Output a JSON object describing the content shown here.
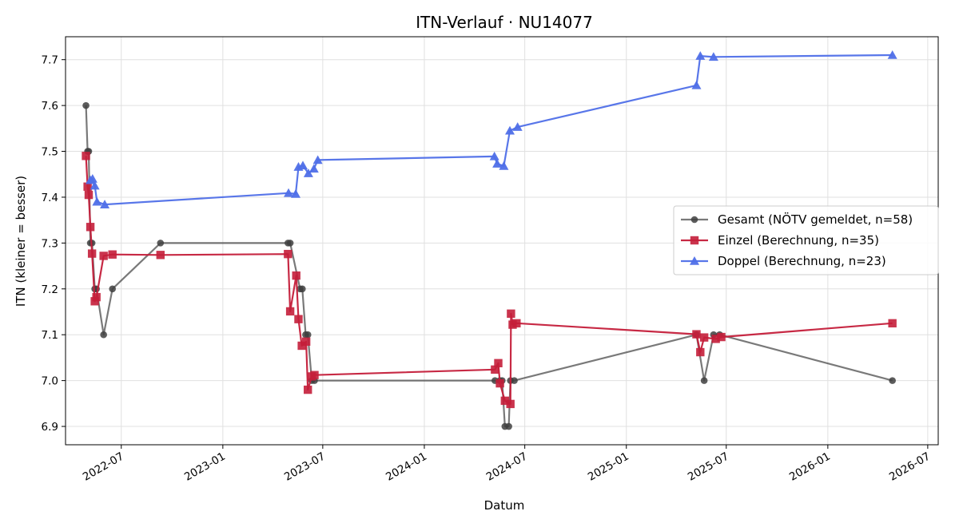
{
  "chart_data": {
    "type": "line",
    "title": "ITN-Verlauf · NU14077",
    "xlabel": "Datum",
    "ylabel": "ITN  (kleiner = besser)",
    "xlim": [
      "2022-03-22",
      "2026-07-20"
    ],
    "ylim": [
      6.86,
      7.75
    ],
    "x_ticks": [
      "2022-07",
      "2023-01",
      "2023-07",
      "2024-01",
      "2024-07",
      "2025-01",
      "2025-07",
      "2026-01",
      "2026-07"
    ],
    "y_ticks": [
      "6.9",
      "7.0",
      "7.1",
      "7.2",
      "7.3",
      "7.4",
      "7.5",
      "7.6",
      "7.7"
    ],
    "grid": true,
    "legend_position": "center-right",
    "series": [
      {
        "name": "Gesamt (NÖTV gemeldet, n=58)",
        "color": "#404040",
        "marker": "circle",
        "points": [
          [
            "2022-04-28",
            7.6
          ],
          [
            "2022-05-01",
            7.5
          ],
          [
            "2022-05-03",
            7.5
          ],
          [
            "2022-05-06",
            7.3
          ],
          [
            "2022-05-09",
            7.3
          ],
          [
            "2022-05-14",
            7.2
          ],
          [
            "2022-05-17",
            7.2
          ],
          [
            "2022-05-30",
            7.1
          ],
          [
            "2022-06-15",
            7.2
          ],
          [
            "2022-09-10",
            7.3
          ],
          [
            "2023-04-29",
            7.3
          ],
          [
            "2023-05-03",
            7.3
          ],
          [
            "2023-05-21",
            7.2
          ],
          [
            "2023-05-25",
            7.2
          ],
          [
            "2023-05-31",
            7.1
          ],
          [
            "2023-06-04",
            7.1
          ],
          [
            "2023-06-11",
            7.0
          ],
          [
            "2023-06-16",
            7.0
          ],
          [
            "2024-05-08",
            7.0
          ],
          [
            "2024-05-17",
            7.0
          ],
          [
            "2024-05-21",
            7.0
          ],
          [
            "2024-05-26",
            6.9
          ],
          [
            "2024-06-02",
            6.9
          ],
          [
            "2024-06-05",
            7.0
          ],
          [
            "2024-06-12",
            7.0
          ],
          [
            "2025-05-08",
            7.1
          ],
          [
            "2025-05-22",
            7.0
          ],
          [
            "2025-06-08",
            7.1
          ],
          [
            "2025-06-19",
            7.1
          ],
          [
            "2026-04-28",
            7.0
          ]
        ]
      },
      {
        "name": "Einzel (Berechnung, n=35)",
        "color": "#c41e3a",
        "marker": "square",
        "points": [
          [
            "2022-04-28",
            7.49
          ],
          [
            "2022-05-01",
            7.423
          ],
          [
            "2022-05-03",
            7.405
          ],
          [
            "2022-05-06",
            7.335
          ],
          [
            "2022-05-09",
            7.277
          ],
          [
            "2022-05-14",
            7.173
          ],
          [
            "2022-05-17",
            7.182
          ],
          [
            "2022-05-30",
            7.272
          ],
          [
            "2022-06-15",
            7.275
          ],
          [
            "2022-09-10",
            7.274
          ],
          [
            "2023-04-29",
            7.276
          ],
          [
            "2023-05-03",
            7.151
          ],
          [
            "2023-05-14",
            7.229
          ],
          [
            "2023-05-18",
            7.134
          ],
          [
            "2023-05-24",
            7.076
          ],
          [
            "2023-06-01",
            7.085
          ],
          [
            "2023-06-04",
            6.98
          ],
          [
            "2023-06-11",
            7.009
          ],
          [
            "2023-06-16",
            7.012
          ],
          [
            "2024-05-08",
            7.024
          ],
          [
            "2024-05-14",
            7.038
          ],
          [
            "2024-05-17",
            6.994
          ],
          [
            "2024-05-26",
            6.956
          ],
          [
            "2024-06-05",
            6.949
          ],
          [
            "2024-06-06",
            7.146
          ],
          [
            "2024-06-09",
            7.122
          ],
          [
            "2024-06-16",
            7.125
          ],
          [
            "2025-05-08",
            7.101
          ],
          [
            "2025-05-15",
            7.062
          ],
          [
            "2025-05-22",
            7.094
          ],
          [
            "2025-06-12",
            7.091
          ],
          [
            "2025-06-22",
            7.095
          ],
          [
            "2026-04-28",
            7.125
          ]
        ]
      },
      {
        "name": "Doppel (Berechnung, n=23)",
        "color": "#4f6fe8",
        "marker": "triangle",
        "points": [
          [
            "2022-05-06",
            7.437
          ],
          [
            "2022-05-10",
            7.44
          ],
          [
            "2022-05-14",
            7.425
          ],
          [
            "2022-05-18",
            7.39
          ],
          [
            "2022-06-01",
            7.384
          ],
          [
            "2023-04-30",
            7.409
          ],
          [
            "2023-05-13",
            7.407
          ],
          [
            "2023-05-18",
            7.466
          ],
          [
            "2023-05-26",
            7.469
          ],
          [
            "2023-06-05",
            7.452
          ],
          [
            "2023-06-15",
            7.462
          ],
          [
            "2023-06-22",
            7.481
          ],
          [
            "2024-05-07",
            7.489
          ],
          [
            "2024-05-12",
            7.473
          ],
          [
            "2024-05-24",
            7.468
          ],
          [
            "2024-06-04",
            7.545
          ],
          [
            "2024-06-18",
            7.553
          ],
          [
            "2025-05-08",
            7.644
          ],
          [
            "2025-05-15",
            7.708
          ],
          [
            "2025-06-08",
            7.706
          ],
          [
            "2026-04-28",
            7.71
          ]
        ]
      }
    ]
  }
}
